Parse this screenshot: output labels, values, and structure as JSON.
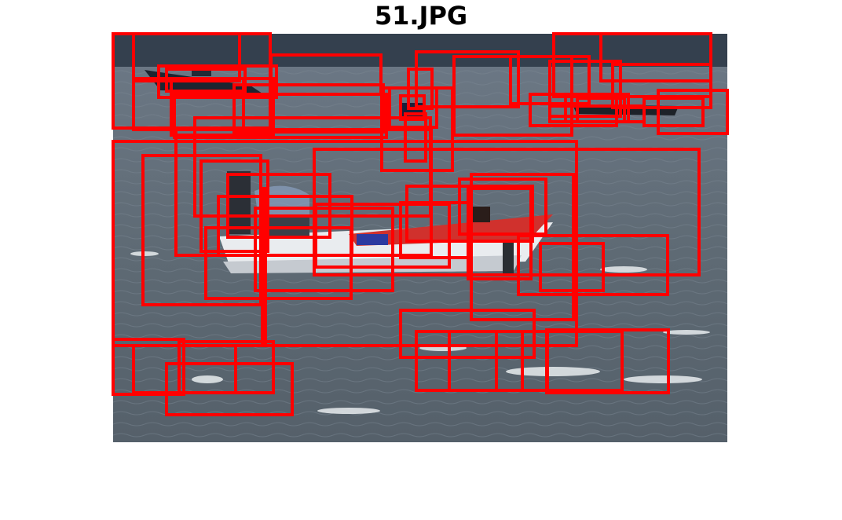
{
  "figure": {
    "title": "51.JPG",
    "box_color": "#ff0000"
  },
  "photo": {
    "description_icon": "boat-on-lake-photo"
  }
}
